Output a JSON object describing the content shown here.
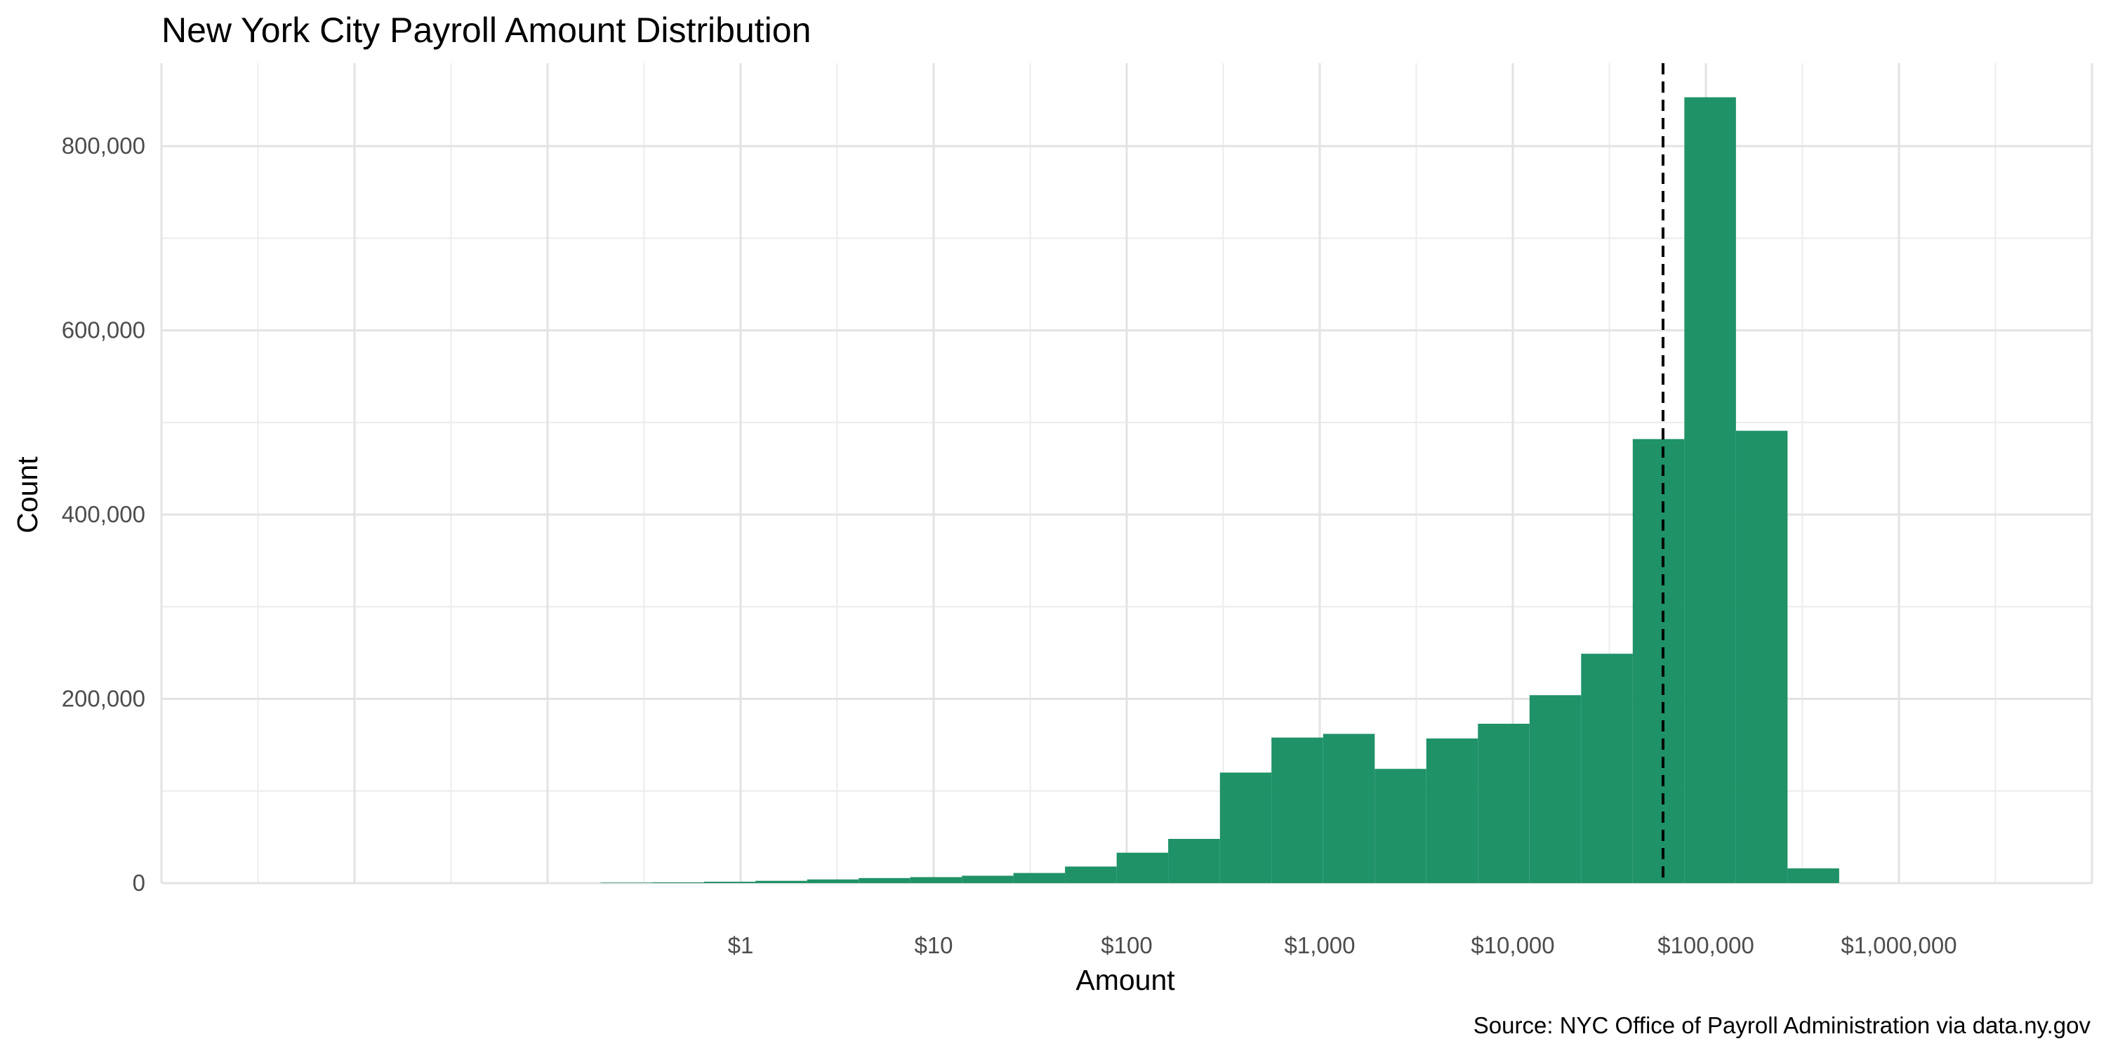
{
  "chart_data": {
    "type": "bar",
    "title": "New York City Payroll Amount Distribution",
    "xlabel": "Amount",
    "ylabel": "Count",
    "caption": "Source: NYC Office of Payroll Administration via data.ny.gov",
    "x_scale": "log10",
    "xlim": [
      0.001,
      10000000
    ],
    "ylim": [
      0,
      890000
    ],
    "grid": true,
    "legend": "none",
    "bar_color": "#1F9268",
    "x_ticks": [
      {
        "value": 1,
        "label": "$1"
      },
      {
        "value": 10,
        "label": "$10"
      },
      {
        "value": 100,
        "label": "$100"
      },
      {
        "value": 1000,
        "label": "$1,000"
      },
      {
        "value": 10000,
        "label": "$10,000"
      },
      {
        "value": 100000,
        "label": "$100,000"
      },
      {
        "value": 1000000,
        "label": "$1,000,000"
      }
    ],
    "y_ticks": [
      {
        "value": 0,
        "label": "0"
      },
      {
        "value": 200000,
        "label": "200,000"
      },
      {
        "value": 400000,
        "label": "400,000"
      },
      {
        "value": 600000,
        "label": "600,000"
      },
      {
        "value": 800000,
        "label": "800,000"
      }
    ],
    "bins": [
      {
        "x0": 0.188,
        "x1": 0.348,
        "count": 500
      },
      {
        "x0": 0.348,
        "x1": 0.645,
        "count": 800
      },
      {
        "x0": 0.645,
        "x1": 1.194,
        "count": 1500
      },
      {
        "x0": 1.194,
        "x1": 2.21,
        "count": 2500
      },
      {
        "x0": 2.21,
        "x1": 4.09,
        "count": 4000
      },
      {
        "x0": 4.09,
        "x1": 7.57,
        "count": 5500
      },
      {
        "x0": 7.57,
        "x1": 14.0,
        "count": 6500
      },
      {
        "x0": 14.0,
        "x1": 25.9,
        "count": 8000
      },
      {
        "x0": 25.9,
        "x1": 47.9,
        "count": 11000
      },
      {
        "x0": 47.9,
        "x1": 88.7,
        "count": 18000
      },
      {
        "x0": 88.7,
        "x1": 164,
        "count": 33000
      },
      {
        "x0": 164,
        "x1": 304,
        "count": 48000
      },
      {
        "x0": 304,
        "x1": 562,
        "count": 120000
      },
      {
        "x0": 562,
        "x1": 1041,
        "count": 158000
      },
      {
        "x0": 1041,
        "x1": 1926,
        "count": 162000
      },
      {
        "x0": 1926,
        "x1": 3564,
        "count": 124000
      },
      {
        "x0": 3564,
        "x1": 6596,
        "count": 157000
      },
      {
        "x0": 6596,
        "x1": 12206,
        "count": 173000
      },
      {
        "x0": 12206,
        "x1": 22589,
        "count": 204000
      },
      {
        "x0": 22589,
        "x1": 41804,
        "count": 249000
      },
      {
        "x0": 41804,
        "x1": 77366,
        "count": 482000
      },
      {
        "x0": 77366,
        "x1": 143178,
        "count": 853000
      },
      {
        "x0": 143178,
        "x1": 264976,
        "count": 491000
      },
      {
        "x0": 264976,
        "x1": 490385,
        "count": 16000
      }
    ],
    "reference_line": {
      "x": 60000,
      "style": "dashed",
      "color": "#000000"
    }
  }
}
